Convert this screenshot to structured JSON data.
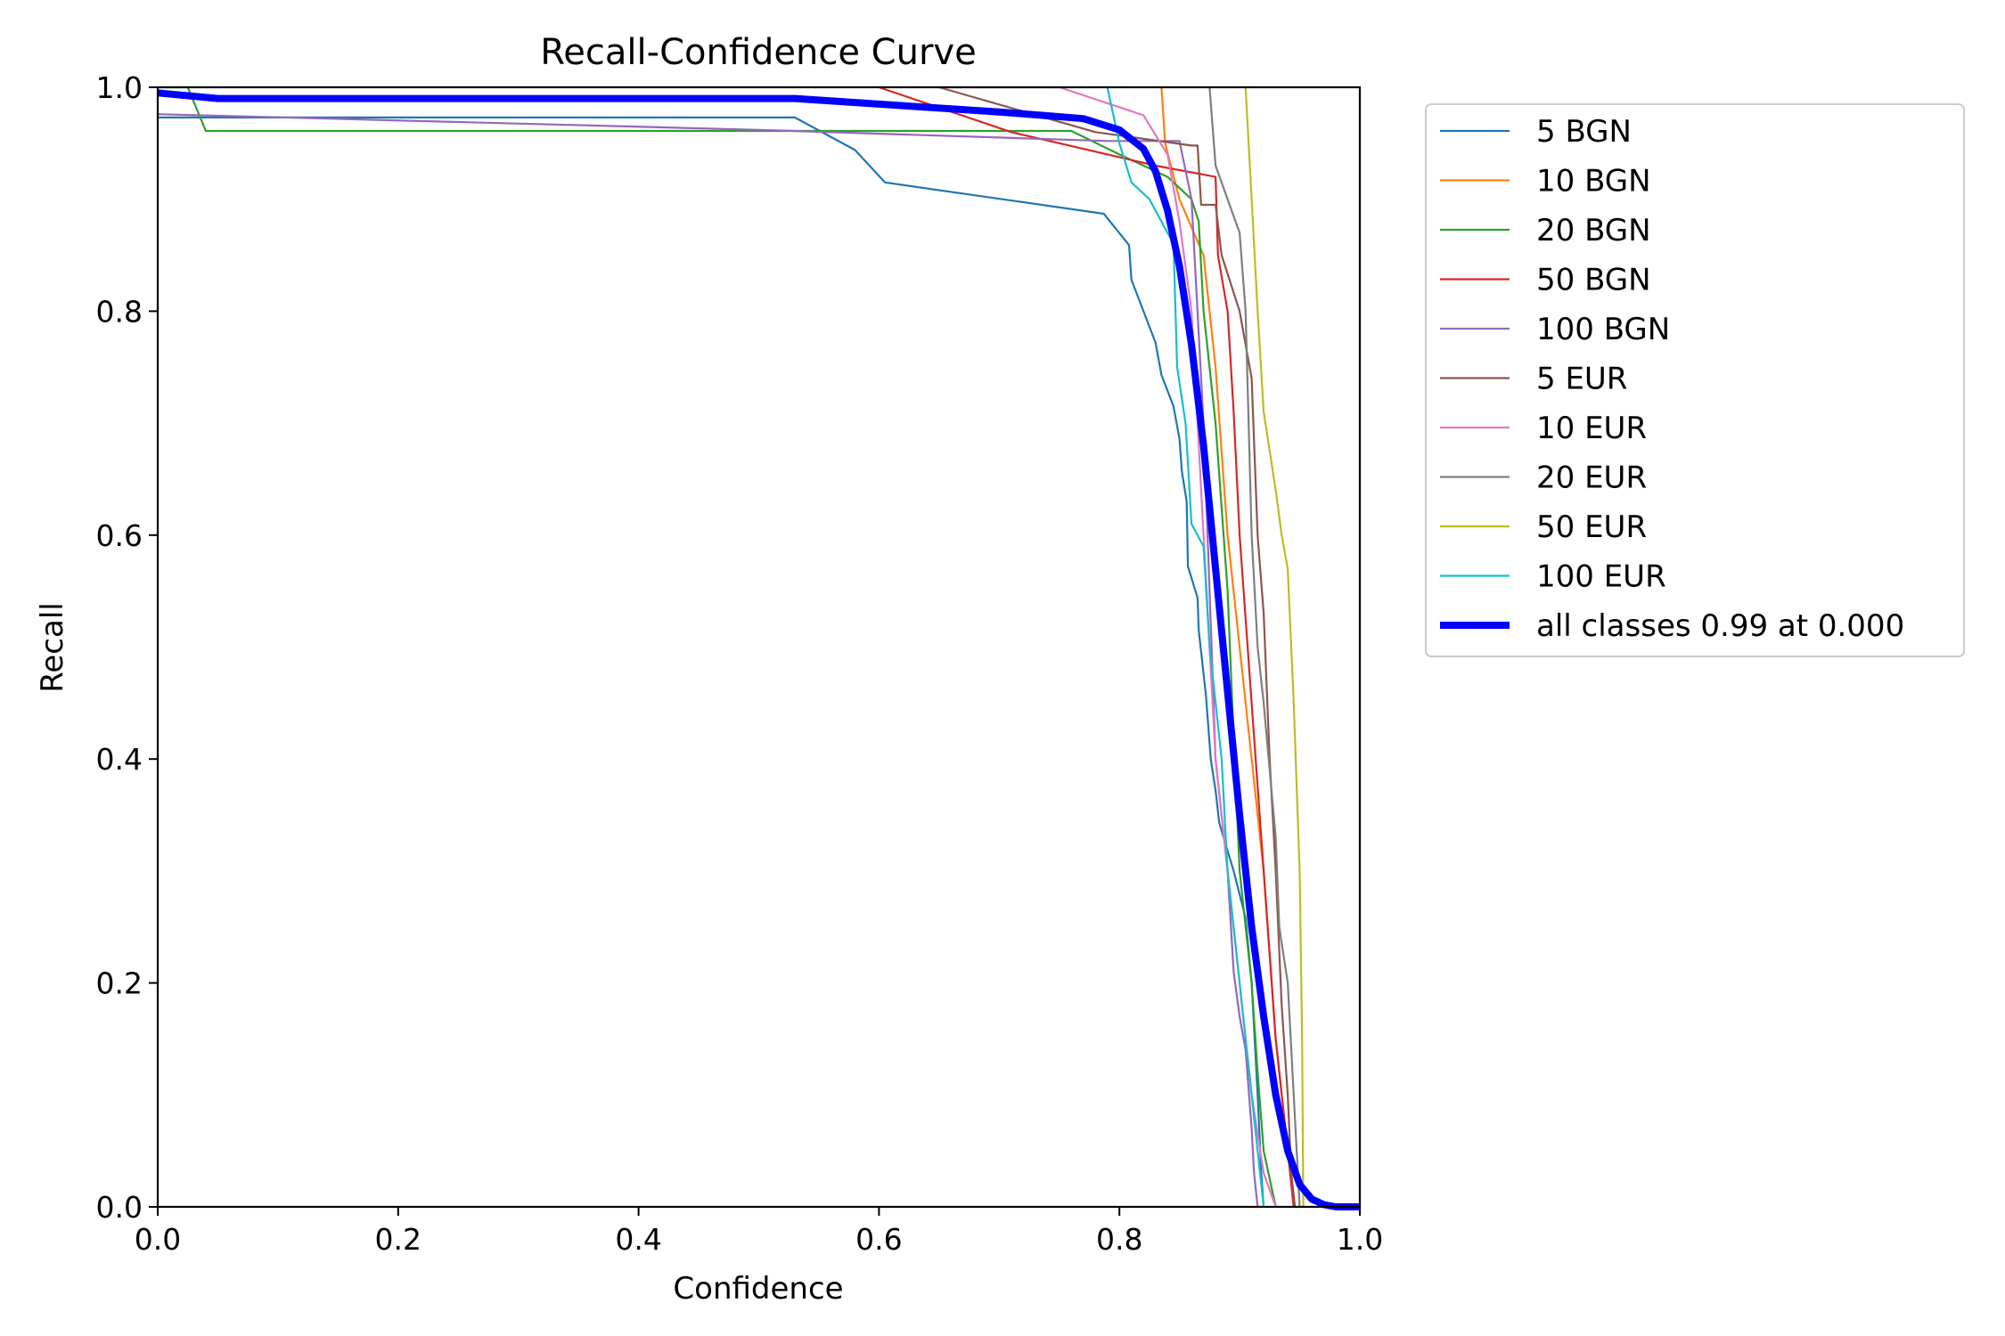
{
  "chart_data": {
    "type": "line",
    "title": "Recall-Confidence Curve",
    "xlabel": "Confidence",
    "ylabel": "Recall",
    "xlim": [
      0,
      1
    ],
    "ylim": [
      0,
      1
    ],
    "xticks": [
      "0.0",
      "0.2",
      "0.4",
      "0.6",
      "0.8",
      "1.0"
    ],
    "yticks": [
      "0.0",
      "0.2",
      "0.4",
      "0.6",
      "0.8",
      "1.0"
    ],
    "grid": false,
    "legend_position": "outside-right",
    "series": [
      {
        "name": "5 BGN",
        "color": "#1f77b4",
        "width": "thin",
        "points": [
          [
            0,
            0.973
          ],
          [
            0.53,
            0.973
          ],
          [
            0.58,
            0.944
          ],
          [
            0.605,
            0.915
          ],
          [
            0.787,
            0.887
          ],
          [
            0.808,
            0.859
          ],
          [
            0.81,
            0.828
          ],
          [
            0.82,
            0.8
          ],
          [
            0.83,
            0.772
          ],
          [
            0.835,
            0.743
          ],
          [
            0.845,
            0.715
          ],
          [
            0.85,
            0.686
          ],
          [
            0.852,
            0.657
          ],
          [
            0.856,
            0.63
          ],
          [
            0.857,
            0.572
          ],
          [
            0.865,
            0.544
          ],
          [
            0.866,
            0.515
          ],
          [
            0.872,
            0.457
          ],
          [
            0.876,
            0.4
          ],
          [
            0.88,
            0.372
          ],
          [
            0.883,
            0.343
          ],
          [
            0.895,
            0.3
          ],
          [
            0.905,
            0.258
          ],
          [
            0.91,
            0.2
          ],
          [
            0.915,
            0.1
          ],
          [
            0.918,
            0.03
          ],
          [
            0.92,
            0
          ]
        ]
      },
      {
        "name": "10 BGN",
        "color": "#ff7f0e",
        "width": "thin",
        "points": [
          [
            0.835,
            1.0
          ],
          [
            0.838,
            0.95
          ],
          [
            0.85,
            0.9
          ],
          [
            0.87,
            0.85
          ],
          [
            0.88,
            0.75
          ],
          [
            0.89,
            0.6
          ],
          [
            0.9,
            0.5
          ],
          [
            0.91,
            0.4
          ],
          [
            0.92,
            0.3
          ],
          [
            0.93,
            0.15
          ],
          [
            0.94,
            0.05
          ],
          [
            0.945,
            0
          ]
        ]
      },
      {
        "name": "20 BGN",
        "color": "#2ca02c",
        "width": "thin",
        "points": [
          [
            0,
            1.0
          ],
          [
            0.025,
            1.0
          ],
          [
            0.04,
            0.961
          ],
          [
            0.76,
            0.961
          ],
          [
            0.8,
            0.94
          ],
          [
            0.84,
            0.92
          ],
          [
            0.86,
            0.9
          ],
          [
            0.866,
            0.88
          ],
          [
            0.87,
            0.8
          ],
          [
            0.88,
            0.7
          ],
          [
            0.89,
            0.55
          ],
          [
            0.895,
            0.42
          ],
          [
            0.9,
            0.3
          ],
          [
            0.91,
            0.2
          ],
          [
            0.915,
            0.12
          ],
          [
            0.92,
            0.05
          ],
          [
            0.93,
            0
          ]
        ]
      },
      {
        "name": "50 BGN",
        "color": "#d62728",
        "width": "thin",
        "points": [
          [
            0.6,
            1.0
          ],
          [
            0.71,
            0.96
          ],
          [
            0.77,
            0.945
          ],
          [
            0.83,
            0.93
          ],
          [
            0.88,
            0.92
          ],
          [
            0.882,
            0.85
          ],
          [
            0.89,
            0.8
          ],
          [
            0.895,
            0.71
          ],
          [
            0.9,
            0.6
          ],
          [
            0.91,
            0.45
          ],
          [
            0.92,
            0.3
          ],
          [
            0.93,
            0.15
          ],
          [
            0.94,
            0.05
          ],
          [
            0.945,
            0
          ]
        ]
      },
      {
        "name": "100 BGN",
        "color": "#9467bd",
        "width": "thin",
        "points": [
          [
            0,
            0.976
          ],
          [
            0.5,
            0.962
          ],
          [
            0.79,
            0.952
          ],
          [
            0.85,
            0.952
          ],
          [
            0.86,
            0.9
          ],
          [
            0.87,
            0.7
          ],
          [
            0.875,
            0.55
          ],
          [
            0.88,
            0.4
          ],
          [
            0.89,
            0.3
          ],
          [
            0.895,
            0.21
          ],
          [
            0.9,
            0.17
          ],
          [
            0.905,
            0.14
          ],
          [
            0.91,
            0.07
          ],
          [
            0.912,
            0.03
          ],
          [
            0.915,
            0
          ]
        ]
      },
      {
        "name": "5 EUR",
        "color": "#8c564b",
        "width": "thin",
        "points": [
          [
            0.65,
            1.0
          ],
          [
            0.78,
            0.96
          ],
          [
            0.86,
            0.948
          ],
          [
            0.865,
            0.948
          ],
          [
            0.868,
            0.895
          ],
          [
            0.88,
            0.895
          ],
          [
            0.885,
            0.85
          ],
          [
            0.9,
            0.8
          ],
          [
            0.91,
            0.74
          ],
          [
            0.915,
            0.6
          ],
          [
            0.92,
            0.53
          ],
          [
            0.925,
            0.4
          ],
          [
            0.93,
            0.3
          ],
          [
            0.935,
            0.18
          ],
          [
            0.94,
            0.1
          ],
          [
            0.943,
            0.03
          ],
          [
            0.946,
            0
          ]
        ]
      },
      {
        "name": "10 EUR",
        "color": "#e377c2",
        "width": "thin",
        "points": [
          [
            0.65,
            1.0
          ],
          [
            0.75,
            1.0
          ],
          [
            0.82,
            0.975
          ],
          [
            0.84,
            0.94
          ],
          [
            0.85,
            0.88
          ],
          [
            0.86,
            0.8
          ],
          [
            0.865,
            0.7
          ],
          [
            0.87,
            0.6
          ],
          [
            0.875,
            0.5
          ],
          [
            0.88,
            0.4
          ],
          [
            0.89,
            0.3
          ],
          [
            0.9,
            0.2
          ],
          [
            0.91,
            0.1
          ],
          [
            0.92,
            0.03
          ],
          [
            0.93,
            0
          ]
        ]
      },
      {
        "name": "20 EUR",
        "color": "#7f7f7f",
        "width": "thin",
        "points": [
          [
            0.875,
            1.0
          ],
          [
            0.88,
            0.93
          ],
          [
            0.9,
            0.87
          ],
          [
            0.905,
            0.8
          ],
          [
            0.91,
            0.6
          ],
          [
            0.915,
            0.5
          ],
          [
            0.92,
            0.45
          ],
          [
            0.93,
            0.33
          ],
          [
            0.933,
            0.25
          ],
          [
            0.94,
            0.2
          ],
          [
            0.945,
            0.1
          ],
          [
            0.95,
            0
          ]
        ]
      },
      {
        "name": "50 EUR",
        "color": "#bcbd22",
        "width": "thin",
        "points": [
          [
            0.905,
            1.0
          ],
          [
            0.91,
            0.9
          ],
          [
            0.915,
            0.8
          ],
          [
            0.92,
            0.71
          ],
          [
            0.93,
            0.64
          ],
          [
            0.935,
            0.6
          ],
          [
            0.94,
            0.57
          ],
          [
            0.945,
            0.45
          ],
          [
            0.95,
            0.3
          ],
          [
            0.952,
            0.15
          ],
          [
            0.953,
            0
          ]
        ]
      },
      {
        "name": "100 EUR",
        "color": "#17becf",
        "width": "thin",
        "points": [
          [
            0.79,
            1.0
          ],
          [
            0.8,
            0.95
          ],
          [
            0.81,
            0.915
          ],
          [
            0.825,
            0.9
          ],
          [
            0.84,
            0.87
          ],
          [
            0.845,
            0.86
          ],
          [
            0.848,
            0.75
          ],
          [
            0.855,
            0.7
          ],
          [
            0.86,
            0.61
          ],
          [
            0.87,
            0.59
          ],
          [
            0.875,
            0.5
          ],
          [
            0.885,
            0.4
          ],
          [
            0.89,
            0.3
          ],
          [
            0.9,
            0.2
          ],
          [
            0.905,
            0.15
          ],
          [
            0.91,
            0.1
          ],
          [
            0.915,
            0.05
          ],
          [
            0.92,
            0
          ]
        ]
      },
      {
        "name": "all classes 0.99 at 0.000",
        "color": "#0000ff",
        "width": "thick",
        "points": [
          [
            0,
            0.995
          ],
          [
            0.05,
            0.99
          ],
          [
            0.3,
            0.99
          ],
          [
            0.53,
            0.99
          ],
          [
            0.6,
            0.985
          ],
          [
            0.7,
            0.978
          ],
          [
            0.77,
            0.972
          ],
          [
            0.8,
            0.962
          ],
          [
            0.82,
            0.945
          ],
          [
            0.83,
            0.925
          ],
          [
            0.84,
            0.89
          ],
          [
            0.85,
            0.84
          ],
          [
            0.86,
            0.77
          ],
          [
            0.87,
            0.68
          ],
          [
            0.88,
            0.57
          ],
          [
            0.89,
            0.46
          ],
          [
            0.9,
            0.35
          ],
          [
            0.91,
            0.25
          ],
          [
            0.92,
            0.17
          ],
          [
            0.93,
            0.1
          ],
          [
            0.94,
            0.05
          ],
          [
            0.95,
            0.02
          ],
          [
            0.96,
            0.007
          ],
          [
            0.97,
            0.002
          ],
          [
            0.98,
            0
          ],
          [
            1.0,
            0
          ]
        ]
      }
    ]
  }
}
